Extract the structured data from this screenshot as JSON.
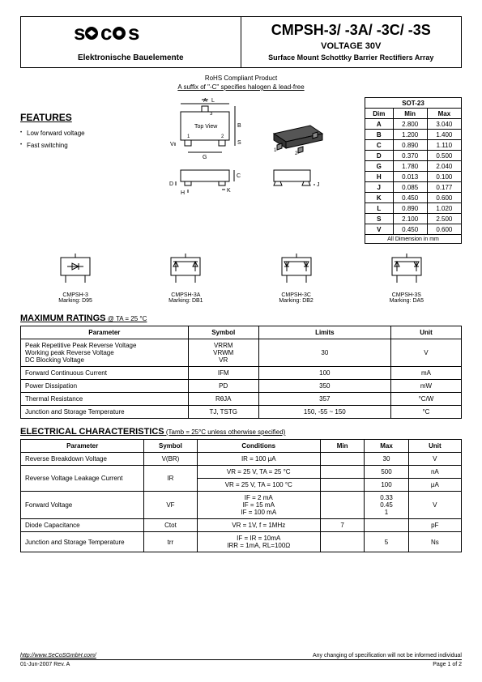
{
  "header": {
    "logo_text": "secos",
    "logo_subtitle": "Elektronische Bauelemente",
    "part_number": "CMPSH-3/ -3A/ -3C/ -3S",
    "voltage": "VOLTAGE 30V",
    "subtitle": "Surface Mount Schottky Barrier Rectifiers Array"
  },
  "rohs": {
    "line1": "RoHS Compliant Product",
    "line2": "A suffix of \"-C\" specifies halogen & lead-free"
  },
  "features": {
    "title": "FEATURES",
    "items": [
      "Low forward voltage",
      "Fast switching"
    ]
  },
  "dimensions": {
    "package": "SOT-23",
    "header": [
      "Dim",
      "Min",
      "Max"
    ],
    "rows": [
      [
        "A",
        "2.800",
        "3.040"
      ],
      [
        "B",
        "1.200",
        "1.400"
      ],
      [
        "C",
        "0.890",
        "1.110"
      ],
      [
        "D",
        "0.370",
        "0.500"
      ],
      [
        "G",
        "1.780",
        "2.040"
      ],
      [
        "H",
        "0.013",
        "0.100"
      ],
      [
        "J",
        "0.085",
        "0.177"
      ],
      [
        "K",
        "0.450",
        "0.600"
      ],
      [
        "L",
        "0.890",
        "1.020"
      ],
      [
        "S",
        "2.100",
        "2.500"
      ],
      [
        "V",
        "0.450",
        "0.600"
      ]
    ],
    "footer": "All Dimension in mm"
  },
  "variants": [
    {
      "name": "CMPSH-3",
      "marking": "Marking: D95"
    },
    {
      "name": "CMPSH-3A",
      "marking": "Marking: DB1"
    },
    {
      "name": "CMPSH-3C",
      "marking": "Marking: DB2"
    },
    {
      "name": "CMPSH-3S",
      "marking": "Marking: DA5"
    }
  ],
  "max_ratings": {
    "title": "MAXIMUM RATINGS",
    "condition": " @ TA = 25 °C",
    "headers": [
      "Parameter",
      "Symbol",
      "Limits",
      "Unit"
    ],
    "rows": [
      {
        "param": "Peak Repetitive Peak Reverse Voltage\nWorking peak Reverse Voltage\nDC Blocking Voltage",
        "symbol": "VRRM\nVRWM\nVR",
        "limits": "30",
        "unit": "V"
      },
      {
        "param": "Forward Continuous Current",
        "symbol": "IFM",
        "limits": "100",
        "unit": "mA"
      },
      {
        "param": "Power Dissipation",
        "symbol": "PD",
        "limits": "350",
        "unit": "mW"
      },
      {
        "param": "Thermal Resistance",
        "symbol": "RθJA",
        "limits": "357",
        "unit": "°C/W"
      },
      {
        "param": "Junction and Storage Temperature",
        "symbol": "TJ, TSTG",
        "limits": "150, -55 ~ 150",
        "unit": "°C"
      }
    ]
  },
  "elec_char": {
    "title": "ELECTRICAL CHARACTERISTICS",
    "condition": " (Tamb = 25°C unless otherwise specified)",
    "headers": [
      "Parameter",
      "Symbol",
      "Conditions",
      "Min",
      "Max",
      "Unit"
    ],
    "rows": [
      {
        "param": "Reverse Breakdown Voltage",
        "symbol": "V(BR)",
        "cond": "IR = 100  μA",
        "min": "",
        "max": "30",
        "unit": "V"
      },
      {
        "param": "Reverse Voltage Leakage Current",
        "symbol": "IR",
        "cond_rows": [
          {
            "cond": "VR = 25 V, TA = 25 °C",
            "min": "",
            "max": "500",
            "unit": "nA"
          },
          {
            "cond": "VR = 25 V, TA = 100 °C",
            "min": "",
            "max": "100",
            "unit": "μA"
          }
        ]
      },
      {
        "param": "Forward Voltage",
        "symbol": "VF",
        "cond": "IF = 2 mA\nIF = 15 mA\nIF = 100 mA",
        "min": "",
        "max": "0.33\n0.45\n1",
        "unit": "V"
      },
      {
        "param": "Diode Capacitance",
        "symbol": "Ctot",
        "cond": "VR = 1V, f = 1MHz",
        "min": "7",
        "max": "",
        "unit": "pF"
      },
      {
        "param": "Junction and Storage Temperature",
        "symbol": "trr",
        "cond": "IF = IR = 10mA\nIRR = 1mA, RL=100Ω",
        "min": "",
        "max": "5",
        "unit": "Ns"
      }
    ]
  },
  "footer": {
    "url": "http://www.SeCoSGmbH.com/",
    "disclaimer": "Any changing of specification will not be informed individual",
    "date": "01-Jun-2007 Rev. A",
    "page": "Page 1 of 2"
  },
  "colors": {
    "text": "#000000",
    "background": "#ffffff",
    "border": "#000000"
  }
}
